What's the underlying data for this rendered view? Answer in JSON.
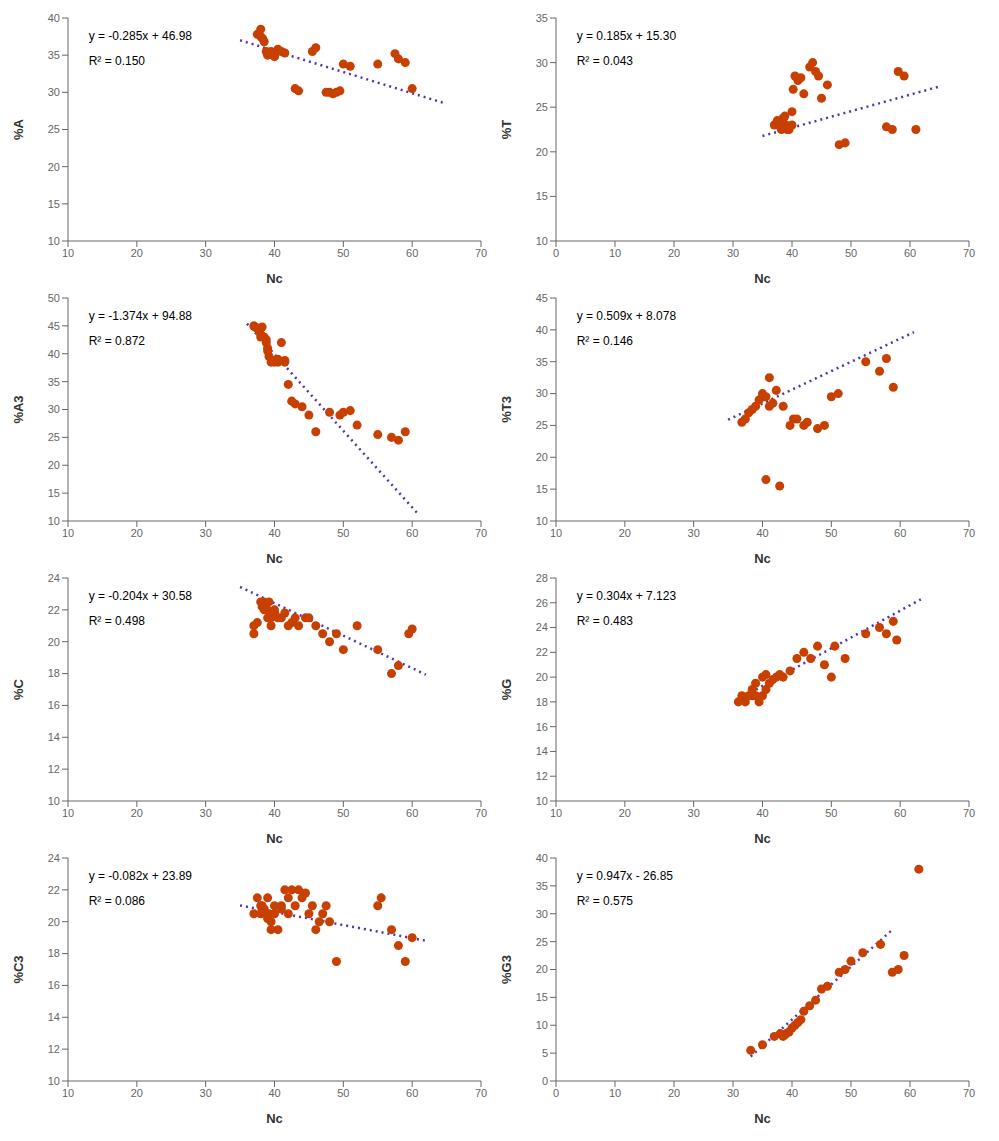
{
  "chart_data": [
    {
      "type": "scatter",
      "x_label": "Nc",
      "y_label": "%A",
      "annotations": [
        "y = -0.285x + 46.98",
        "R² = 0.150"
      ],
      "xlim": [
        10,
        70
      ],
      "ylim": [
        10,
        40
      ],
      "xticks": [
        10,
        20,
        30,
        40,
        50,
        60,
        70
      ],
      "yticks": [
        10,
        15,
        20,
        25,
        30,
        35,
        40
      ],
      "grid": false,
      "series": [
        {
          "type": "line",
          "line_style": "dotted",
          "color": "#5533AA",
          "x": [
            35,
            65
          ],
          "values": [
            37.005,
            28.455
          ]
        },
        {
          "type": "scatter",
          "color": "#C84000",
          "x": [
            37.5,
            38.0,
            38.0,
            38.3,
            38.5,
            38.8,
            39.0,
            39.0,
            39.2,
            39.5,
            39.8,
            40.0,
            40.0,
            40.3,
            40.5,
            41.0,
            41.5,
            43.0,
            43.5,
            45.5,
            46.0,
            47.5,
            48.0,
            48.5,
            49.0,
            49.5,
            50.0,
            51.0,
            55.0,
            57.5,
            58.0,
            59.0,
            60.0
          ],
          "values": [
            37.8,
            38.5,
            37.5,
            37.2,
            36.8,
            35.5,
            35.2,
            35.0,
            35.2,
            35.5,
            35.0,
            35.0,
            34.8,
            35.5,
            35.8,
            35.5,
            35.3,
            30.5,
            30.2,
            35.5,
            36.0,
            30.0,
            30.0,
            29.8,
            30.0,
            30.2,
            33.8,
            33.5,
            33.8,
            35.2,
            34.5,
            34.0,
            30.5
          ]
        }
      ]
    },
    {
      "type": "scatter",
      "x_label": "Nc",
      "y_label": "%T",
      "annotations": [
        "y = 0.185x + 15.30",
        "R² = 0.043"
      ],
      "xlim": [
        0,
        70
      ],
      "ylim": [
        10,
        35
      ],
      "xticks": [
        0,
        10,
        20,
        30,
        40,
        50,
        60,
        70
      ],
      "yticks": [
        10,
        15,
        20,
        25,
        30,
        35
      ],
      "grid": false,
      "series": [
        {
          "type": "line",
          "line_style": "dotted",
          "color": "#5533AA",
          "x": [
            35,
            65
          ],
          "values": [
            21.775,
            27.325
          ]
        },
        {
          "type": "scatter",
          "color": "#C84000",
          "x": [
            37.0,
            37.5,
            38.0,
            38.2,
            38.5,
            38.8,
            39.0,
            39.0,
            39.2,
            39.5,
            40.0,
            40.0,
            40.2,
            40.5,
            41.0,
            41.5,
            42.0,
            43.0,
            43.5,
            44.0,
            44.5,
            45.0,
            46.0,
            48.0,
            49.0,
            56.0,
            57.0,
            58.0,
            59.0,
            61.0
          ],
          "values": [
            23.0,
            23.5,
            23.0,
            22.5,
            23.8,
            24.0,
            23.0,
            22.8,
            22.5,
            22.5,
            24.5,
            23.0,
            27.0,
            28.5,
            28.0,
            28.3,
            26.5,
            29.5,
            30.0,
            29.0,
            28.5,
            26.0,
            27.5,
            20.8,
            21.0,
            22.8,
            22.5,
            29.0,
            28.5,
            22.5
          ]
        }
      ]
    },
    {
      "type": "scatter",
      "x_label": "Nc",
      "y_label": "%A3",
      "annotations": [
        "y = -1.374x + 94.88",
        "R² = 0.872"
      ],
      "xlim": [
        10,
        70
      ],
      "ylim": [
        10,
        50
      ],
      "xticks": [
        10,
        20,
        30,
        40,
        50,
        60,
        70
      ],
      "yticks": [
        10,
        15,
        20,
        25,
        30,
        35,
        40,
        45,
        50
      ],
      "grid": false,
      "series": [
        {
          "type": "line",
          "line_style": "dotted",
          "color": "#5533AA",
          "x": [
            36,
            61
          ],
          "values": [
            45.416,
            11.066
          ]
        },
        {
          "type": "scatter",
          "color": "#C84000",
          "x": [
            37.0,
            37.2,
            37.5,
            38.0,
            38.0,
            38.2,
            38.5,
            38.8,
            38.8,
            39.0,
            39.0,
            39.2,
            39.5,
            40.0,
            40.0,
            40.5,
            40.5,
            41.0,
            41.5,
            41.5,
            42.0,
            42.5,
            43.0,
            44.0,
            45.0,
            46.0,
            48.0,
            49.5,
            50.0,
            51.0,
            52.0,
            55.0,
            57.0,
            58.0,
            59.0
          ],
          "values": [
            45.0,
            44.8,
            44.5,
            43.5,
            43.0,
            44.8,
            43.0,
            42.0,
            42.5,
            41.0,
            40.5,
            39.5,
            38.5,
            38.5,
            38.8,
            39.0,
            38.5,
            42.0,
            38.8,
            38.5,
            34.5,
            31.5,
            31.0,
            30.5,
            29.0,
            26.0,
            29.5,
            29.0,
            29.5,
            29.8,
            27.2,
            25.5,
            25.0,
            24.5,
            26.0
          ]
        }
      ]
    },
    {
      "type": "scatter",
      "x_label": "Nc",
      "y_label": "%T3",
      "annotations": [
        "y = 0.509x + 8.078",
        "R² = 0.146"
      ],
      "xlim": [
        10,
        70
      ],
      "ylim": [
        10,
        45
      ],
      "xticks": [
        10,
        20,
        30,
        40,
        50,
        60,
        70
      ],
      "yticks": [
        10,
        15,
        20,
        25,
        30,
        35,
        40,
        45
      ],
      "grid": false,
      "series": [
        {
          "type": "line",
          "line_style": "dotted",
          "color": "#5533AA",
          "x": [
            35,
            62
          ],
          "values": [
            25.893,
            39.636
          ]
        },
        {
          "type": "scatter",
          "color": "#C84000",
          "x": [
            37.0,
            37.5,
            38.0,
            38.5,
            39.0,
            39.5,
            40.0,
            40.0,
            40.5,
            41.0,
            41.0,
            41.5,
            42.0,
            43.0,
            44.0,
            44.5,
            45.0,
            46.0,
            46.5,
            48.0,
            49.0,
            50.0,
            51.0,
            55.0,
            57.0,
            58.0,
            59.0,
            40.5,
            42.5
          ],
          "values": [
            25.5,
            26.0,
            27.0,
            27.5,
            28.0,
            29.0,
            30.0,
            29.5,
            29.5,
            32.5,
            28.0,
            28.5,
            30.5,
            28.0,
            25.0,
            26.0,
            26.0,
            25.0,
            25.5,
            24.5,
            25.0,
            29.5,
            30.0,
            35.0,
            33.5,
            35.5,
            31.0,
            16.5,
            15.5
          ]
        }
      ]
    },
    {
      "type": "scatter",
      "x_label": "Nc",
      "y_label": "%C",
      "annotations": [
        "y = -0.204x + 30.58",
        "R² = 0.498"
      ],
      "xlim": [
        10,
        70
      ],
      "ylim": [
        10,
        24
      ],
      "xticks": [
        10,
        20,
        30,
        40,
        50,
        60,
        70
      ],
      "yticks": [
        10,
        12,
        14,
        16,
        18,
        20,
        22,
        24
      ],
      "grid": false,
      "series": [
        {
          "type": "line",
          "line_style": "dotted",
          "color": "#5533AA",
          "x": [
            35,
            62
          ],
          "values": [
            23.44,
            17.932
          ]
        },
        {
          "type": "scatter",
          "color": "#C84000",
          "x": [
            37.0,
            37.0,
            37.5,
            38.0,
            38.2,
            38.5,
            38.5,
            39.0,
            39.0,
            39.2,
            39.5,
            39.5,
            40.0,
            40.0,
            40.5,
            41.0,
            41.5,
            42.0,
            42.5,
            43.0,
            43.5,
            44.5,
            45.0,
            46.0,
            47.0,
            48.0,
            49.0,
            50.0,
            52.0,
            55.0,
            57.0,
            58.0,
            59.5,
            60.0
          ],
          "values": [
            21.0,
            20.5,
            21.2,
            22.5,
            22.2,
            22.0,
            22.5,
            21.5,
            22.0,
            22.5,
            21.5,
            21.0,
            21.8,
            22.0,
            21.5,
            21.5,
            21.8,
            21.0,
            21.2,
            21.5,
            21.0,
            21.5,
            21.5,
            21.0,
            20.5,
            20.0,
            20.5,
            19.5,
            21.0,
            19.5,
            18.0,
            18.5,
            20.5,
            20.8
          ]
        }
      ]
    },
    {
      "type": "scatter",
      "x_label": "Nc",
      "y_label": "%G",
      "annotations": [
        "y = 0.304x + 7.123",
        "R² = 0.483"
      ],
      "xlim": [
        10,
        70
      ],
      "ylim": [
        10,
        28
      ],
      "xticks": [
        10,
        20,
        30,
        40,
        50,
        60,
        70
      ],
      "yticks": [
        10,
        12,
        14,
        16,
        18,
        20,
        22,
        24,
        26,
        28
      ],
      "grid": false,
      "series": [
        {
          "type": "line",
          "line_style": "dotted",
          "color": "#5533AA",
          "x": [
            36,
            63
          ],
          "values": [
            18.067,
            26.275
          ]
        },
        {
          "type": "scatter",
          "color": "#C84000",
          "x": [
            36.5,
            37.0,
            37.5,
            38.0,
            38.5,
            38.5,
            39.0,
            39.0,
            39.5,
            40.0,
            40.0,
            40.5,
            40.5,
            41.0,
            41.5,
            42.0,
            42.5,
            43.0,
            44.0,
            45.0,
            46.0,
            47.0,
            48.0,
            49.0,
            50.0,
            50.5,
            52.0,
            55.0,
            57.0,
            58.0,
            59.0,
            59.5
          ],
          "values": [
            18.0,
            18.5,
            18.0,
            18.5,
            18.5,
            19.0,
            18.5,
            19.5,
            18.0,
            18.5,
            20.0,
            19.0,
            20.2,
            19.5,
            19.8,
            20.0,
            20.2,
            20.0,
            20.5,
            21.5,
            22.0,
            21.5,
            22.5,
            21.0,
            20.0,
            22.5,
            21.5,
            23.5,
            24.0,
            23.5,
            24.5,
            23.0
          ]
        }
      ]
    },
    {
      "type": "scatter",
      "x_label": "Nc",
      "y_label": "%C3",
      "annotations": [
        "y = -0.082x + 23.89",
        "R² = 0.086"
      ],
      "xlim": [
        10,
        70
      ],
      "ylim": [
        10,
        24
      ],
      "xticks": [
        10,
        20,
        30,
        40,
        50,
        60,
        70
      ],
      "yticks": [
        10,
        12,
        14,
        16,
        18,
        20,
        22,
        24
      ],
      "grid": false,
      "series": [
        {
          "type": "line",
          "line_style": "dotted",
          "color": "#5533AA",
          "x": [
            35,
            62
          ],
          "values": [
            21.02,
            18.806
          ]
        },
        {
          "type": "scatter",
          "color": "#C84000",
          "x": [
            37.0,
            37.5,
            38.0,
            38.0,
            38.2,
            38.5,
            38.8,
            39.0,
            39.0,
            39.2,
            39.5,
            39.5,
            40.0,
            40.0,
            40.5,
            41.0,
            41.0,
            41.5,
            42.0,
            42.0,
            42.5,
            43.0,
            43.5,
            44.0,
            44.5,
            45.0,
            45.5,
            46.0,
            46.5,
            47.0,
            47.5,
            48.0,
            49.0,
            55.0,
            55.5,
            57.0,
            58.0,
            59.0,
            60.0
          ],
          "values": [
            20.5,
            21.5,
            20.5,
            21.0,
            21.0,
            20.8,
            20.5,
            21.5,
            20.2,
            20.5,
            20.0,
            19.5,
            20.5,
            21.0,
            19.5,
            21.0,
            20.8,
            22.0,
            20.5,
            21.5,
            22.0,
            21.0,
            22.0,
            21.5,
            21.8,
            20.5,
            21.0,
            19.5,
            20.0,
            20.5,
            21.0,
            20.0,
            17.5,
            21.0,
            21.5,
            19.5,
            18.5,
            17.5,
            19.0
          ]
        }
      ]
    },
    {
      "type": "scatter",
      "x_label": "Nc",
      "y_label": "%G3",
      "annotations": [
        "y = 0.947x - 26.85",
        "R² = 0.575"
      ],
      "xlim": [
        0,
        70
      ],
      "ylim": [
        0,
        40
      ],
      "xticks": [
        0,
        10,
        20,
        30,
        40,
        50,
        60,
        70
      ],
      "yticks": [
        0,
        5,
        10,
        15,
        20,
        25,
        30,
        35,
        40
      ],
      "grid": false,
      "series": [
        {
          "type": "line",
          "line_style": "dotted",
          "color": "#5533AA",
          "x": [
            33,
            57
          ],
          "values": [
            4.401,
            27.129
          ]
        },
        {
          "type": "scatter",
          "color": "#C84000",
          "x": [
            33.0,
            35.0,
            37.0,
            38.0,
            38.5,
            38.8,
            39.0,
            39.5,
            40.0,
            40.5,
            41.0,
            41.5,
            42.0,
            43.0,
            44.0,
            45.0,
            46.0,
            48.0,
            49.0,
            50.0,
            52.0,
            55.0,
            57.0,
            58.0,
            59.0,
            61.5
          ],
          "values": [
            5.5,
            6.5,
            8.0,
            8.5,
            8.0,
            8.3,
            8.5,
            8.8,
            9.5,
            10.0,
            10.5,
            11.0,
            12.5,
            13.5,
            14.5,
            16.5,
            17.0,
            19.5,
            20.0,
            21.5,
            23.0,
            24.5,
            19.5,
            20.0,
            22.5,
            38.0
          ]
        }
      ]
    }
  ]
}
